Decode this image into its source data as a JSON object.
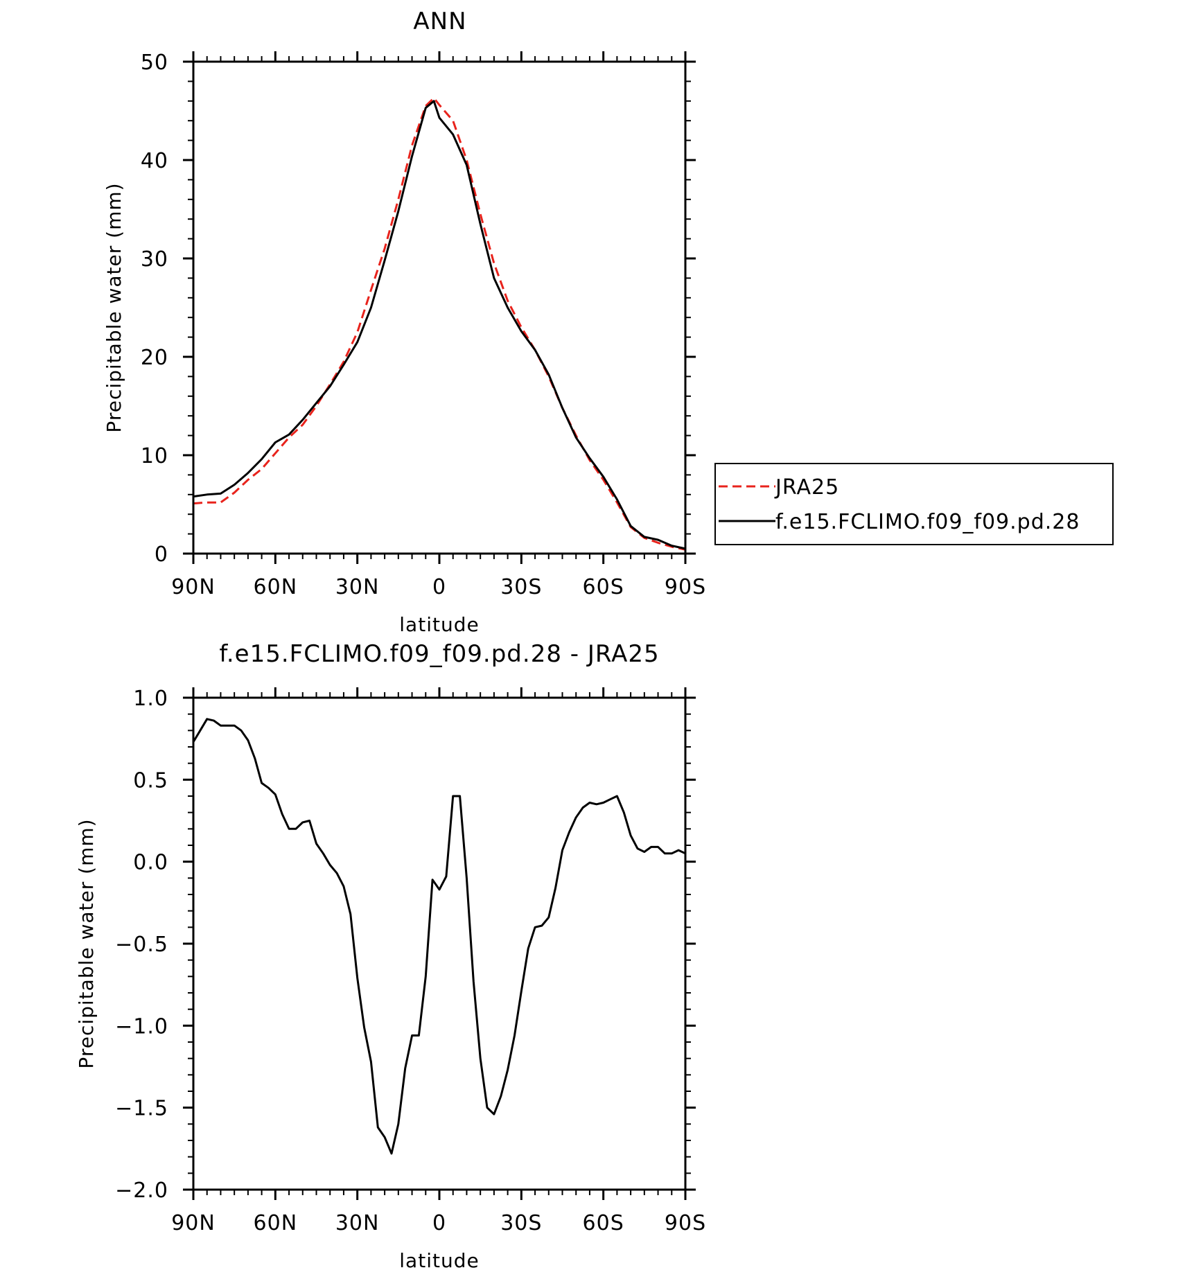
{
  "chart_data": [
    {
      "type": "line",
      "title": "ANN",
      "xlabel": "latitude",
      "ylabel": "Precipitable water (mm)",
      "xlim": [
        90,
        -90
      ],
      "ylim": [
        0,
        50
      ],
      "x_ticks": [
        90,
        60,
        30,
        0,
        -30,
        -60,
        -90
      ],
      "x_tick_labels": [
        "90N",
        "60N",
        "30N",
        "0",
        "30S",
        "60S",
        "90S"
      ],
      "y_ticks": [
        0,
        10,
        20,
        30,
        40,
        50
      ],
      "y_tick_labels": [
        "0",
        "10",
        "20",
        "30",
        "40",
        "50"
      ],
      "legend_position": "right",
      "grid": false,
      "series": [
        {
          "name": "JRA25",
          "color": "#e8231c",
          "dash": "dashed",
          "x": [
            90,
            85,
            80,
            75,
            70,
            65,
            60,
            55,
            50,
            45,
            40,
            35,
            30,
            25,
            20,
            15,
            10,
            5,
            2,
            0,
            -5,
            -10,
            -15,
            -20,
            -25,
            -30,
            -35,
            -40,
            -45,
            -50,
            -55,
            -60,
            -65,
            -70,
            -75,
            -80,
            -85,
            -90
          ],
          "values": [
            5.1,
            5.2,
            5.2,
            6.2,
            7.5,
            8.6,
            10.2,
            11.8,
            13.1,
            15.0,
            17.2,
            19.5,
            22.5,
            26.8,
            31.0,
            36.0,
            41.5,
            45.5,
            46.3,
            45.6,
            44.0,
            40.0,
            34.5,
            29.5,
            25.7,
            23.0,
            20.7,
            18.0,
            14.8,
            12.0,
            9.5,
            7.5,
            5.2,
            2.7,
            1.6,
            1.1,
            0.7,
            0.4
          ]
        },
        {
          "name": "f.e15.FCLIMO.f09_f09.pd.28",
          "color": "#000000",
          "dash": "solid",
          "x": [
            90,
            85,
            80,
            75,
            70,
            65,
            60,
            55,
            50,
            45,
            40,
            35,
            30,
            25,
            20,
            15,
            10,
            5,
            2,
            0,
            -5,
            -10,
            -15,
            -20,
            -25,
            -30,
            -35,
            -40,
            -45,
            -50,
            -55,
            -60,
            -65,
            -70,
            -75,
            -80,
            -85,
            -90
          ],
          "values": [
            5.8,
            6.0,
            6.1,
            7.0,
            8.2,
            9.6,
            11.3,
            12.1,
            13.6,
            15.3,
            17.0,
            19.2,
            21.5,
            25.0,
            29.8,
            34.8,
            40.4,
            45.3,
            46.0,
            44.3,
            42.6,
            39.5,
            33.5,
            28.0,
            25.0,
            22.6,
            20.7,
            18.2,
            14.8,
            11.8,
            9.7,
            7.8,
            5.5,
            2.8,
            1.7,
            1.4,
            0.8,
            0.5
          ]
        }
      ]
    },
    {
      "type": "line",
      "title": "f.e15.FCLIMO.f09_f09.pd.28 - JRA25",
      "xlabel": "latitude",
      "ylabel": "Precipitable water (mm)",
      "xlim": [
        90,
        -90
      ],
      "ylim": [
        -2.0,
        1.0
      ],
      "x_ticks": [
        90,
        60,
        30,
        0,
        -30,
        -60,
        -90
      ],
      "x_tick_labels": [
        "90N",
        "60N",
        "30N",
        "0",
        "30S",
        "60S",
        "90S"
      ],
      "y_ticks": [
        1.0,
        0.5,
        0.0,
        -0.5,
        -1.0,
        -1.5,
        -2.0
      ],
      "y_tick_labels": [
        "1.0",
        "0.5",
        "0.0",
        "−0.5",
        "−1.0",
        "−1.5",
        "−2.0"
      ],
      "grid": false,
      "series": [
        {
          "color": "#000000",
          "dash": "solid",
          "x": [
            90,
            87.5,
            85,
            82.5,
            80,
            77.5,
            75,
            72.5,
            70,
            67.5,
            65,
            62.5,
            60,
            57.5,
            55,
            52.5,
            50,
            47.5,
            45,
            42.5,
            40,
            37.5,
            35,
            32.5,
            30,
            27.5,
            25,
            22.5,
            20,
            17.5,
            15,
            12.5,
            10,
            7.5,
            5,
            2.5,
            0,
            -2.5,
            -5,
            -7.5,
            -10,
            -12.5,
            -15,
            -17.5,
            -20,
            -22.5,
            -25,
            -27.5,
            -30,
            -32.5,
            -35,
            -37.5,
            -40,
            -42.5,
            -45,
            -47.5,
            -50,
            -52.5,
            -55,
            -57.5,
            -60,
            -62.5,
            -65,
            -67.5,
            -70,
            -72.5,
            -75,
            -77.5,
            -80,
            -82.5,
            -85,
            -87.5,
            -90
          ],
          "values": [
            0.73,
            0.8,
            0.87,
            0.86,
            0.83,
            0.83,
            0.83,
            0.8,
            0.74,
            0.63,
            0.48,
            0.45,
            0.41,
            0.29,
            0.2,
            0.2,
            0.24,
            0.25,
            0.11,
            0.05,
            -0.02,
            -0.07,
            -0.15,
            -0.32,
            -0.71,
            -1.01,
            -1.22,
            -1.62,
            -1.68,
            -1.78,
            -1.6,
            -1.26,
            -1.06,
            -1.06,
            -0.7,
            -0.11,
            -0.17,
            -0.09,
            0.4,
            0.4,
            -0.1,
            -0.73,
            -1.2,
            -1.5,
            -1.54,
            -1.43,
            -1.27,
            -1.06,
            -0.79,
            -0.53,
            -0.4,
            -0.39,
            -0.34,
            -0.16,
            0.07,
            0.18,
            0.27,
            0.33,
            0.36,
            0.35,
            0.36,
            0.38,
            0.4,
            0.3,
            0.16,
            0.08,
            0.06,
            0.09,
            0.09,
            0.05,
            0.05,
            0.07,
            0.05
          ]
        }
      ]
    }
  ]
}
